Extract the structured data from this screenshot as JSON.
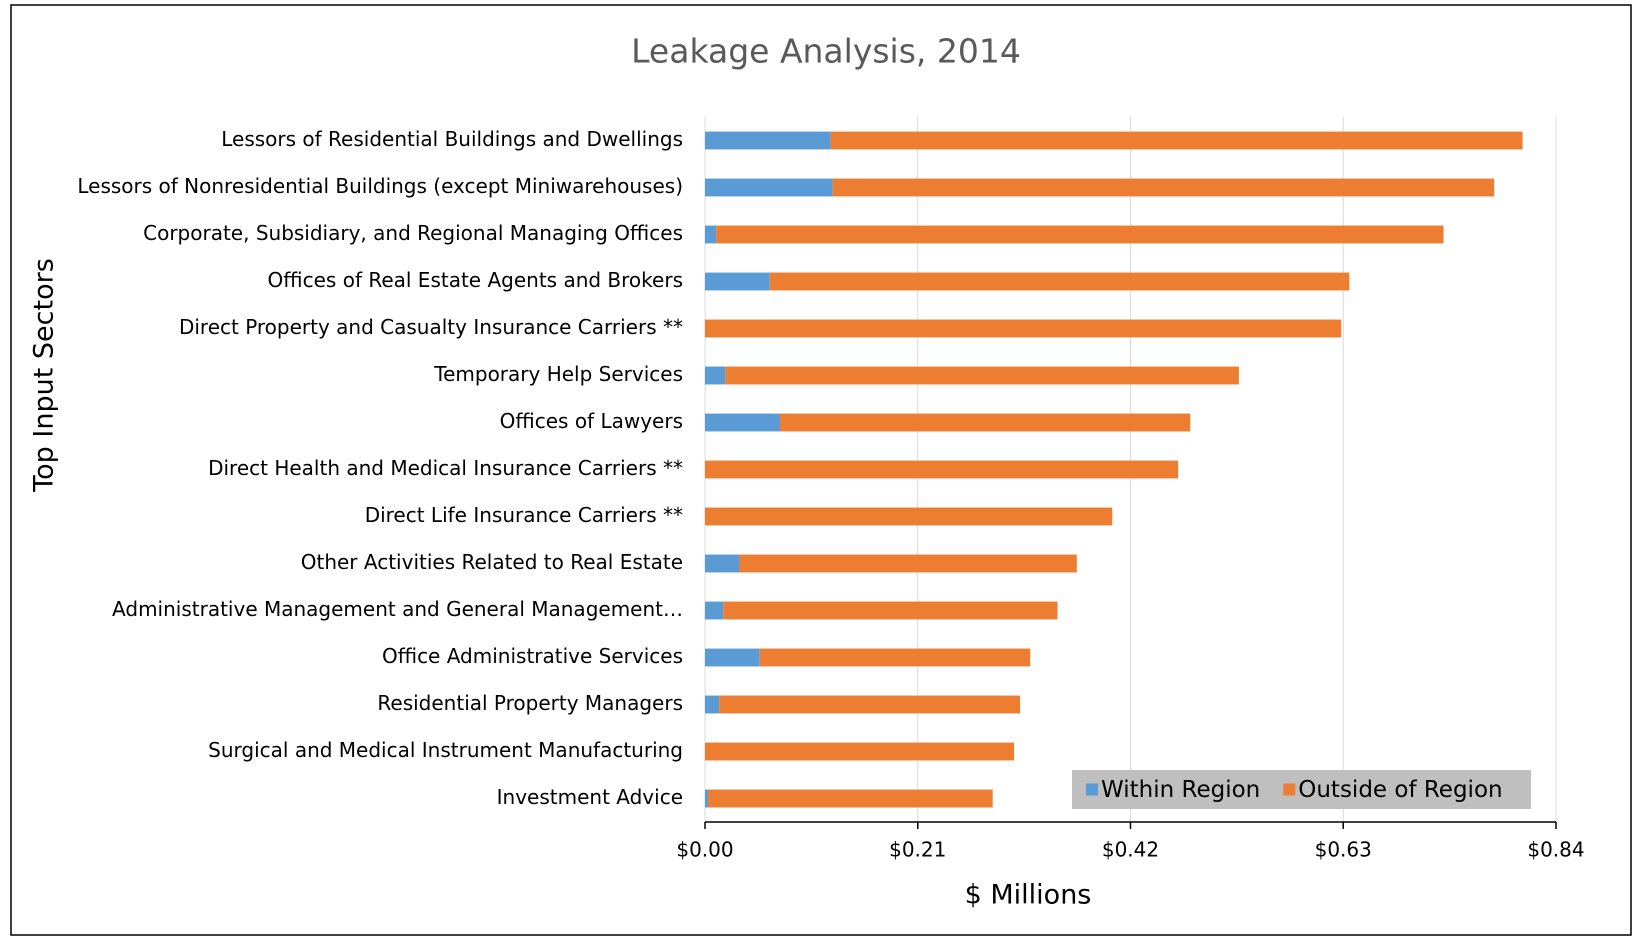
{
  "chart_data": {
    "type": "stacked-barh",
    "title": "Leakage Analysis, 2014",
    "x_label": "$ Millions",
    "y_label": "Top Input Sectors",
    "categories": [
      "Lessors of Residential Buildings and Dwellings",
      "Lessors of Nonresidential Buildings (except Miniwarehouses)",
      "Corporate, Subsidiary, and Regional Managing Offices",
      "Offices of Real Estate Agents and Brokers",
      "Direct Property and Casualty Insurance Carriers **",
      "Temporary Help Services",
      "Offices of Lawyers",
      "Direct Health and Medical Insurance Carriers **",
      "Direct Life Insurance Carriers **",
      "Other Activities Related to Real Estate",
      "Administrative Management and General Management…",
      "Office Administrative Services",
      "Residential Property Managers",
      "Surgical and Medical Instrument Manufacturing",
      "Investment Advice"
    ],
    "series": [
      {
        "name": "Within Region",
        "color": "#5b9bd5",
        "values": [
          0.124,
          0.126,
          0.011,
          0.064,
          0,
          0.02,
          0.074,
          0,
          0,
          0.034,
          0.018,
          0.054,
          0.014,
          0,
          0.003
        ]
      },
      {
        "name": "Outside of Region",
        "color": "#ed7d31",
        "values": [
          0.683,
          0.653,
          0.718,
          0.572,
          0.628,
          0.507,
          0.405,
          0.467,
          0.402,
          0.333,
          0.33,
          0.267,
          0.297,
          0.305,
          0.281
        ]
      }
    ],
    "xlim": [
      0,
      0.84
    ],
    "xticks": [
      {
        "value": 0,
        "label": "$0.00"
      },
      {
        "value": 0.21,
        "label": "$0.21"
      },
      {
        "value": 0.42,
        "label": "$0.42"
      },
      {
        "value": 0.63,
        "label": "$0.63"
      },
      {
        "value": 0.84,
        "label": "$0.84"
      }
    ],
    "grid": true,
    "legend": "lower right"
  }
}
